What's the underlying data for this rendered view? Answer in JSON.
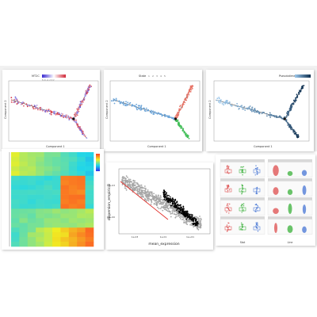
{
  "chart_data": [
    {
      "type": "scatter",
      "subtype": "trajectory",
      "legend_title": "MT2C",
      "legend_ticks": "8 -6 -4 -2 0 2",
      "xlabel": "Component 1",
      "ylabel": "Component 2",
      "colors": [
        "#3a2ad1",
        "#ffffff",
        "#d12a3a"
      ],
      "legend_placement": "top"
    },
    {
      "type": "scatter",
      "subtype": "trajectory",
      "legend_title": "State",
      "legend_entries": [
        "1",
        "2",
        "3",
        "4",
        "5"
      ],
      "xlabel": "Component 1",
      "ylabel": "Component 2",
      "colors": [
        "#6ea6d9",
        "#e8776a",
        "#44c15a"
      ],
      "legend_placement": "top"
    },
    {
      "type": "scatter",
      "subtype": "trajectory",
      "legend_title": "Pseudotime",
      "xlabel": "Component 1",
      "ylabel": "Component 2",
      "colors": [
        "#9cc8ec",
        "#0e2f4f"
      ],
      "legend_placement": "top-right"
    },
    {
      "type": "heatmap",
      "rows": 20,
      "cols": 10,
      "colormap": [
        "#2c2cf0",
        "#22d6e8",
        "#f0f022",
        "#ff3a22"
      ],
      "legend_placement": "right"
    },
    {
      "type": "scatter",
      "xlabel": "mean_expression",
      "ylabel": "dispersion_empirical",
      "x_tick_labels": [
        "1e-03",
        "1e-01",
        "1e+01"
      ],
      "y_tick_labels": [
        "1e+03",
        "1e+00"
      ],
      "series": [
        {
          "color": "#a6a6a6"
        },
        {
          "color": "#000000"
        }
      ],
      "fit_line_color": "#e3342f",
      "grid": false
    },
    {
      "type": "violin",
      "facets": 2,
      "xlabel_left": "Stat",
      "xlabel_right": "Line",
      "colors": [
        "#e06060",
        "#4fb84f",
        "#5a84d8"
      ]
    }
  ]
}
